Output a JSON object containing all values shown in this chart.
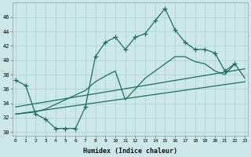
{
  "xlabel": "Humidex (Indice chaleur)",
  "bg_color": "#cce8e8",
  "grid_color": "#aacece",
  "line_color": "#1a7060",
  "x_ticks": [
    0,
    1,
    2,
    3,
    4,
    5,
    6,
    7,
    8,
    9,
    10,
    11,
    12,
    13,
    14,
    15,
    16,
    17,
    18,
    19,
    20,
    21,
    22,
    23
  ],
  "ylim": [
    29.5,
    48
  ],
  "xlim": [
    -0.3,
    23.3
  ],
  "yticks": [
    30,
    32,
    34,
    36,
    38,
    40,
    42,
    44,
    46
  ],
  "curve1_x": [
    0,
    1,
    2,
    3,
    4,
    5,
    6,
    7,
    8,
    9,
    10,
    11,
    12,
    13,
    14,
    15,
    16,
    17,
    18,
    19,
    20,
    21,
    22
  ],
  "curve1_y": [
    37.2,
    36.5,
    32.5,
    31.8,
    30.5,
    30.5,
    30.5,
    33.5,
    40.5,
    42.5,
    43.2,
    41.5,
    43.2,
    43.7,
    45.5,
    47.2,
    44.2,
    42.5,
    41.5,
    41.5,
    41.0,
    38.5,
    39.5
  ],
  "curve2_x": [
    0,
    2,
    3,
    7,
    8,
    9,
    10,
    11,
    12,
    13,
    14,
    15,
    16,
    17,
    18,
    19,
    20,
    21,
    22,
    23
  ],
  "curve2_y": [
    32.5,
    32.8,
    33.2,
    35.8,
    37.0,
    37.8,
    38.5,
    34.5,
    36.0,
    37.5,
    38.5,
    39.5,
    40.5,
    40.5,
    39.8,
    39.5,
    38.5,
    38.0,
    39.5,
    37.5
  ],
  "curve3_x": [
    0,
    23
  ],
  "curve3_y": [
    32.5,
    37.0
  ],
  "curve4_x": [
    0,
    23
  ],
  "curve4_y": [
    33.5,
    38.8
  ]
}
